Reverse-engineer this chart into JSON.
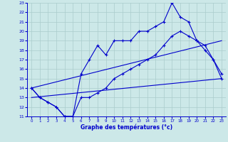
{
  "xlabel": "Graphe des températures (°c)",
  "xlim": [
    -0.5,
    23.5
  ],
  "ylim": [
    11,
    23
  ],
  "xticks": [
    0,
    1,
    2,
    3,
    4,
    5,
    6,
    7,
    8,
    9,
    10,
    11,
    12,
    13,
    14,
    15,
    16,
    17,
    18,
    19,
    20,
    21,
    22,
    23
  ],
  "yticks": [
    11,
    12,
    13,
    14,
    15,
    16,
    17,
    18,
    19,
    20,
    21,
    22,
    23
  ],
  "bg_color": "#cce8e8",
  "line_color": "#0000cc",
  "grid_color": "#aacccc",
  "line1_x": [
    0,
    1,
    2,
    3,
    4,
    5,
    6,
    7,
    8,
    9,
    10,
    11,
    12,
    13,
    14,
    15,
    16,
    17,
    18,
    19,
    20,
    21,
    22,
    23
  ],
  "line1_y": [
    14,
    13,
    12.5,
    12,
    11,
    11,
    15.5,
    17,
    18.5,
    17.5,
    19,
    19,
    19,
    20,
    20,
    20.5,
    21,
    23,
    21.5,
    21,
    19,
    18.5,
    17,
    15
  ],
  "line2_x": [
    0,
    1,
    2,
    3,
    4,
    5,
    6,
    7,
    8,
    9,
    10,
    11,
    12,
    13,
    14,
    15,
    16,
    17,
    18,
    19,
    20,
    21,
    22,
    23
  ],
  "line2_y": [
    14,
    13,
    12.5,
    12,
    11,
    11,
    13,
    13,
    13.5,
    14,
    15,
    15.5,
    16,
    16.5,
    17,
    17.5,
    18.5,
    19.5,
    20,
    19.5,
    19,
    18,
    17,
    15.5
  ],
  "line3_x": [
    0,
    23
  ],
  "line3_y": [
    13,
    15
  ],
  "line4_x": [
    0,
    23
  ],
  "line4_y": [
    14,
    19
  ]
}
